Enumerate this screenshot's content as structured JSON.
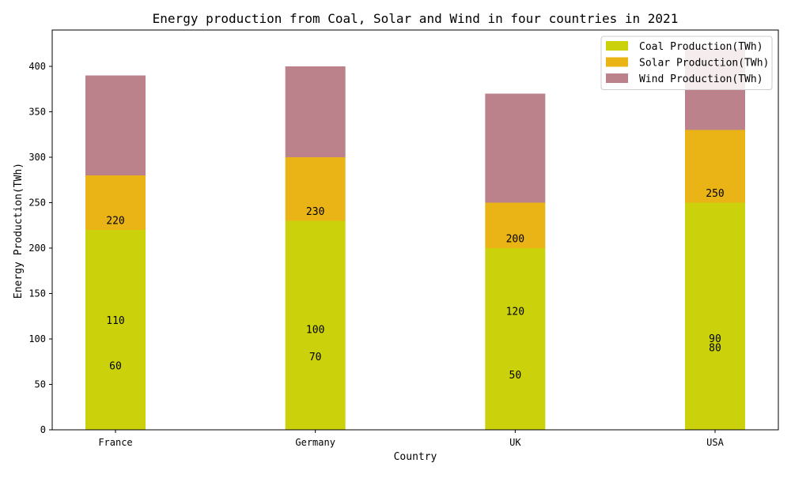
{
  "chart_data": {
    "type": "bar",
    "stacked": true,
    "title": "Energy production from Coal, Solar and Wind in four countries in 2021",
    "xlabel": "Country",
    "ylabel": "Energy Production(TWh)",
    "categories": [
      "France",
      "Germany",
      "UK",
      "USA"
    ],
    "ylim": [
      0,
      440
    ],
    "yticks": [
      0,
      50,
      100,
      150,
      200,
      250,
      300,
      350,
      400
    ],
    "grid": false,
    "legend_position": "top-right",
    "series": [
      {
        "name": "Coal Production(TWh)",
        "values": [
          220,
          230,
          200,
          250
        ],
        "color": "#cbd20b"
      },
      {
        "name": "Solar Production(TWh)",
        "values": [
          60,
          70,
          50,
          80
        ],
        "color": "#eab416"
      },
      {
        "name": "Wind Production(TWh)",
        "values": [
          110,
          100,
          120,
          90
        ],
        "color": "#bb828c"
      }
    ],
    "annotations": [
      {
        "category": "France",
        "text": "220",
        "y": 230
      },
      {
        "category": "France",
        "text": "110",
        "y": 120
      },
      {
        "category": "France",
        "text": "60",
        "y": 70
      },
      {
        "category": "Germany",
        "text": "230",
        "y": 240
      },
      {
        "category": "Germany",
        "text": "100",
        "y": 110
      },
      {
        "category": "Germany",
        "text": "70",
        "y": 80
      },
      {
        "category": "UK",
        "text": "200",
        "y": 210
      },
      {
        "category": "UK",
        "text": "120",
        "y": 130
      },
      {
        "category": "UK",
        "text": "50",
        "y": 60
      },
      {
        "category": "USA",
        "text": "250",
        "y": 260
      },
      {
        "category": "USA",
        "text": "90",
        "y": 100
      },
      {
        "category": "USA",
        "text": "80",
        "y": 90
      }
    ]
  }
}
